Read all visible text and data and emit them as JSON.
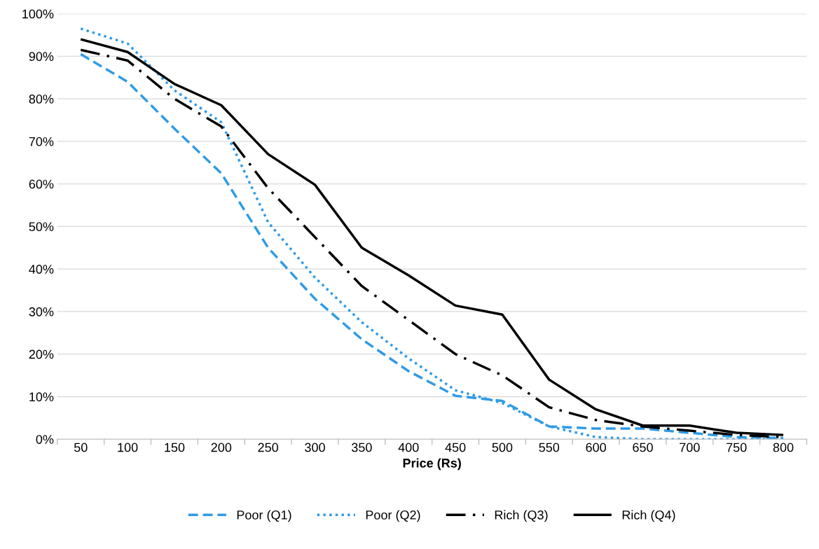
{
  "chart_data": {
    "type": "line",
    "xlabel": "Price (Rs)",
    "categories": [
      "50",
      "100",
      "150",
      "200",
      "250",
      "300",
      "350",
      "400",
      "450",
      "500",
      "550",
      "600",
      "650",
      "700",
      "750",
      "800"
    ],
    "series": [
      {
        "name": "Poor (Q1)",
        "color": "#2e9be6",
        "line_style": "dashed",
        "values": [
          90.5,
          84,
          73,
          62.5,
          45,
          33,
          23.5,
          16,
          10.2,
          9,
          3,
          2.5,
          2.5,
          1.5,
          0.5,
          0.3
        ]
      },
      {
        "name": "Poor (Q2)",
        "color": "#2e9be6",
        "line_style": "dotted",
        "values": [
          96.5,
          93,
          82,
          74.5,
          51,
          38,
          27.5,
          19,
          11.5,
          8.5,
          3,
          0.5,
          0,
          0,
          0,
          0
        ]
      },
      {
        "name": "Rich (Q3)",
        "color": "#000000",
        "line_style": "dashdot",
        "values": [
          91.5,
          89,
          80,
          73.5,
          59,
          47.5,
          36,
          28,
          20,
          15,
          7.5,
          4.5,
          3,
          2,
          1,
          0.5
        ]
      },
      {
        "name": "Rich (Q4)",
        "color": "#000000",
        "line_style": "solid",
        "values": [
          94,
          91,
          83.5,
          78.5,
          67,
          59.8,
          45,
          38.5,
          31.4,
          29.3,
          14,
          7,
          3.2,
          3.2,
          1.5,
          1
        ]
      }
    ],
    "ylim": [
      0,
      100
    ],
    "yticks": [
      {
        "value": 0,
        "label": "0%"
      },
      {
        "value": 10,
        "label": "10%"
      },
      {
        "value": 20,
        "label": "20%"
      },
      {
        "value": 30,
        "label": "30%"
      },
      {
        "value": 40,
        "label": "40%"
      },
      {
        "value": 50,
        "label": "50%"
      },
      {
        "value": 60,
        "label": "60%"
      },
      {
        "value": 70,
        "label": "70%"
      },
      {
        "value": 80,
        "label": "80%"
      },
      {
        "value": 90,
        "label": "90%"
      },
      {
        "value": 100,
        "label": "100%"
      }
    ],
    "grid": "y",
    "legend": "bottom",
    "marker": "none"
  }
}
